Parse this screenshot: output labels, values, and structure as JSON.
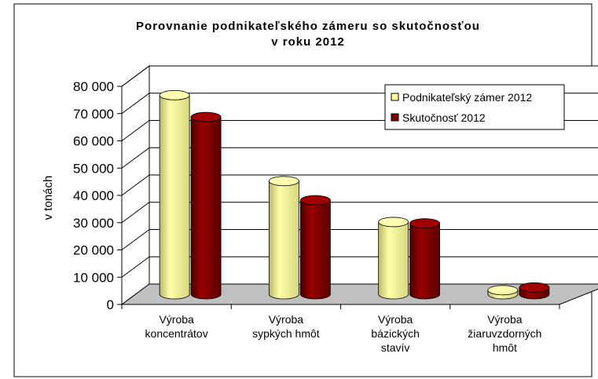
{
  "chart_data": {
    "type": "bar3d",
    "title": "Porovnanie podnikateľského zámeru so skutočnosťou\nv roku 2012",
    "y_label": "v tonách",
    "categories": [
      "Výroba\nkoncentrátov",
      "Výroba\nsypkých hmôt",
      "Výroba\nbázických\nstavív",
      "Výroba\nžiaruvzdorných\nhmôt"
    ],
    "series": [
      {
        "name": "Podnikateľský zámer 2012",
        "color": "#ffff99",
        "values": [
          73000,
          41500,
          26500,
          1500
        ]
      },
      {
        "name": "Skutočnosť 2012",
        "color": "#800000",
        "values": [
          65000,
          34500,
          26000,
          2500
        ]
      }
    ],
    "ylim": [
      0,
      80000
    ],
    "yticks": [
      0,
      {
        "value": 10000,
        "label": "10 000"
      },
      {
        "value": 20000,
        "label": "20 000"
      },
      {
        "value": 30000,
        "label": "30 000"
      },
      {
        "value": 40000,
        "label": "40 000"
      },
      {
        "value": 50000,
        "label": "50 000"
      },
      {
        "value": 60000,
        "label": "60 000"
      },
      {
        "value": 70000,
        "label": "70 000"
      },
      {
        "value": 80000,
        "label": "80 000"
      }
    ],
    "grid": true,
    "legend": "upper right"
  }
}
